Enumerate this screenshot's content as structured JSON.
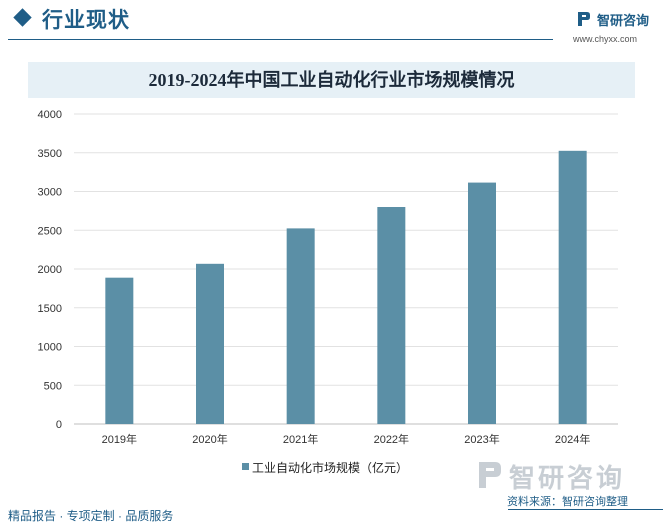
{
  "header": {
    "section_title": "行业现状",
    "logo_name": "智研咨询",
    "logo_url": "www.chyxx.com"
  },
  "chart_data": {
    "type": "bar",
    "title": "2019-2024年中国工业自动化行业市场规模情况",
    "categories": [
      "2019年",
      "2020年",
      "2021年",
      "2022年",
      "2023年",
      "2024年"
    ],
    "series": [
      {
        "name": "工业自动化市场规模（亿元）",
        "values": [
          1888,
          2067,
          2524,
          2800,
          3115,
          3525
        ]
      }
    ],
    "ylim": [
      0,
      4000
    ],
    "yticks": [
      0,
      500,
      1000,
      1500,
      2000,
      2500,
      3000,
      3500,
      4000
    ],
    "grid": true,
    "legend": "bottom",
    "bar_color": "#5b8fa6"
  },
  "footer": {
    "logo_name": "智研咨询",
    "left_text": "精品报告 · 专项定制 · 品质服务",
    "source": "资料来源：智研咨询整理"
  }
}
